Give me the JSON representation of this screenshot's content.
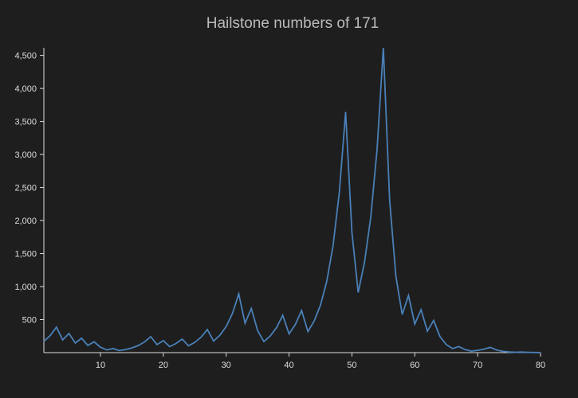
{
  "chart_data": {
    "type": "line",
    "title": "Hailstone numbers of 171",
    "x": [
      1,
      2,
      3,
      4,
      5,
      6,
      7,
      8,
      9,
      10,
      11,
      12,
      13,
      14,
      15,
      16,
      17,
      18,
      19,
      20,
      21,
      22,
      23,
      24,
      25,
      26,
      27,
      28,
      29,
      30,
      31,
      32,
      33,
      34,
      35,
      36,
      37,
      38,
      39,
      40,
      41,
      42,
      43,
      44,
      45,
      46,
      47,
      48,
      49,
      50,
      51,
      52,
      53,
      54,
      55,
      56,
      57,
      58,
      59,
      60,
      61,
      62,
      63,
      64,
      65,
      66,
      67,
      68,
      69,
      70,
      71,
      72,
      73,
      74,
      75,
      76,
      77,
      78,
      79,
      80
    ],
    "series": [
      {
        "color": "#4a80b8",
        "values": [
          171,
          257,
          386,
          193,
          290,
          145,
          218,
          109,
          164,
          82,
          41,
          62,
          31,
          47,
          71,
          107,
          161,
          242,
          121,
          182,
          91,
          137,
          206,
          103,
          155,
          233,
          350,
          175,
          263,
          395,
          593,
          890,
          445,
          668,
          334,
          167,
          251,
          377,
          566,
          283,
          425,
          638,
          319,
          479,
          719,
          1079,
          1619,
          2429,
          3644,
          1822,
          911,
          1367,
          2051,
          3077,
          4616,
          2308,
          1154,
          577,
          866,
          433,
          650,
          325,
          488,
          244,
          122,
          61,
          92,
          46,
          23,
          35,
          53,
          80,
          40,
          20,
          10,
          5,
          8,
          4,
          2,
          1
        ]
      }
    ],
    "xlim": [
      1,
      80
    ],
    "xticks": [
      10,
      20,
      30,
      40,
      50,
      60,
      70,
      80
    ],
    "ylim": [
      0,
      4616
    ],
    "yticks": [
      500,
      {
        "value": 1000,
        "label": "1,000"
      },
      {
        "value": 1500,
        "label": "1,500"
      },
      {
        "value": 2000,
        "label": "2,000"
      },
      {
        "value": 2500,
        "label": "2,500"
      },
      {
        "value": 3000,
        "label": "3,000"
      },
      {
        "value": 3500,
        "label": "3,500"
      },
      {
        "value": 4000,
        "label": "4,000"
      },
      {
        "value": 4500,
        "label": "4,500"
      }
    ]
  }
}
